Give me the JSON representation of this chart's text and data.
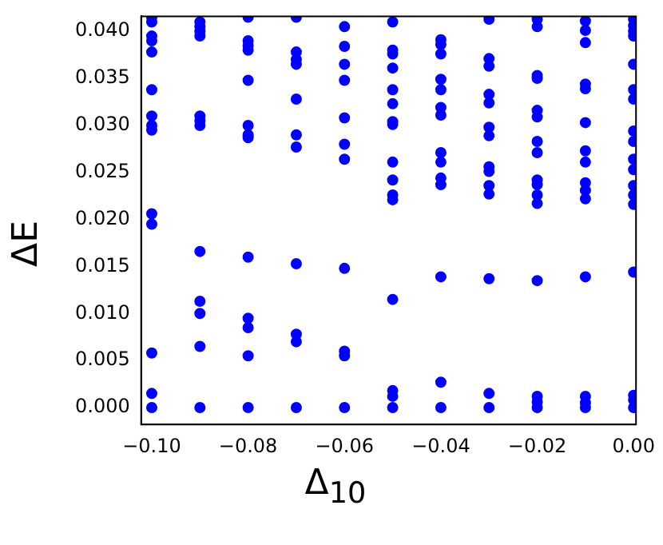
{
  "chart_data": {
    "type": "scatter",
    "xlabel": "Δ$_{10}$",
    "ylabel": "ΔE",
    "color": "#0000ff",
    "marker": "circle",
    "grid": false,
    "legend": false,
    "x": [
      -0.1,
      -0.1,
      -0.1,
      -0.1,
      -0.1,
      -0.1,
      -0.1,
      -0.1,
      -0.1,
      -0.1,
      -0.1,
      -0.1,
      -0.1,
      -0.1,
      -0.09,
      -0.09,
      -0.09,
      -0.09,
      -0.09,
      -0.09,
      -0.09,
      -0.09,
      -0.09,
      -0.09,
      -0.09,
      -0.09,
      -0.08,
      -0.08,
      -0.08,
      -0.08,
      -0.08,
      -0.08,
      -0.08,
      -0.08,
      -0.08,
      -0.08,
      -0.08,
      -0.08,
      -0.08,
      -0.07,
      -0.07,
      -0.07,
      -0.07,
      -0.07,
      -0.07,
      -0.07,
      -0.07,
      -0.07,
      -0.07,
      -0.07,
      -0.06,
      -0.06,
      -0.06,
      -0.06,
      -0.06,
      -0.06,
      -0.06,
      -0.06,
      -0.06,
      -0.06,
      -0.06,
      -0.05,
      -0.05,
      -0.05,
      -0.05,
      -0.05,
      -0.05,
      -0.05,
      -0.05,
      -0.05,
      -0.05,
      -0.05,
      -0.05,
      -0.05,
      -0.05,
      -0.05,
      -0.05,
      -0.04,
      -0.04,
      -0.04,
      -0.04,
      -0.04,
      -0.04,
      -0.04,
      -0.04,
      -0.04,
      -0.04,
      -0.04,
      -0.04,
      -0.04,
      -0.04,
      -0.03,
      -0.03,
      -0.03,
      -0.03,
      -0.03,
      -0.03,
      -0.03,
      -0.03,
      -0.03,
      -0.03,
      -0.03,
      -0.03,
      -0.03,
      -0.03,
      -0.02,
      -0.02,
      -0.02,
      -0.02,
      -0.02,
      -0.02,
      -0.02,
      -0.02,
      -0.02,
      -0.02,
      -0.02,
      -0.02,
      -0.02,
      -0.02,
      -0.02,
      -0.02,
      -0.01,
      -0.01,
      -0.01,
      -0.01,
      -0.01,
      -0.01,
      -0.01,
      -0.01,
      -0.01,
      -0.01,
      -0.01,
      -0.01,
      -0.01,
      -0.01,
      -0.01,
      0,
      0,
      0,
      0,
      0,
      0,
      0,
      0,
      0,
      0,
      0,
      0,
      0,
      0,
      0,
      0,
      0,
      0
    ],
    "values": [
      0.0415,
      0.041,
      0.0395,
      0.039,
      0.0378,
      0.0338,
      0.031,
      0.03,
      0.0295,
      0.0206,
      0.0195,
      0.0058,
      0.0015,
      0,
      0.041,
      0.0405,
      0.04,
      0.0395,
      0.031,
      0.0305,
      0.03,
      0.0166,
      0.0113,
      0.01,
      0.0065,
      0,
      0.0415,
      0.039,
      0.0385,
      0.038,
      0.0348,
      0.03,
      0.029,
      0.0287,
      0.016,
      0.0095,
      0.0085,
      0.0055,
      0,
      0.0415,
      0.0378,
      0.037,
      0.0365,
      0.0328,
      0.029,
      0.0277,
      0.0153,
      0.0078,
      0.007,
      0,
      0.0405,
      0.0384,
      0.0365,
      0.0348,
      0.0308,
      0.028,
      0.0264,
      0.0148,
      0.006,
      0.0055,
      0,
      0.041,
      0.038,
      0.0376,
      0.0361,
      0.0338,
      0.0323,
      0.0304,
      0.0301,
      0.0261,
      0.0242,
      0.0226,
      0.0221,
      0.0115,
      0.0018,
      0.0012,
      0,
      0.0391,
      0.0386,
      0.0376,
      0.0349,
      0.0338,
      0.0319,
      0.0311,
      0.0271,
      0.0261,
      0.0244,
      0.0237,
      0.0139,
      0.0027,
      0,
      0.0413,
      0.0371,
      0.0363,
      0.0333,
      0.0324,
      0.0298,
      0.0289,
      0.0256,
      0.0251,
      0.0236,
      0.0227,
      0.0137,
      0.0015,
      0,
      0.0413,
      0.0405,
      0.0353,
      0.035,
      0.0316,
      0.0309,
      0.0283,
      0.0271,
      0.0242,
      0.0237,
      0.0226,
      0.0217,
      0.0135,
      0.0012,
      0.0006,
      0,
      0.0411,
      0.0401,
      0.0388,
      0.0344,
      0.0339,
      0.0303,
      0.0273,
      0.0261,
      0.0239,
      0.0231,
      0.0222,
      0.0139,
      0.0012,
      0.0005,
      0,
      0.0413,
      0.0406,
      0.04,
      0.0395,
      0.0365,
      0.0338,
      0.0328,
      0.0294,
      0.0283,
      0.0264,
      0.0253,
      0.0236,
      0.0226,
      0.0216,
      0.0144,
      0.0013,
      0.0008,
      0
    ],
    "xlim": [
      -0.1022,
      0.0005
    ],
    "xticks": [
      {
        "value": -0.1,
        "label": "−0.10"
      },
      {
        "value": -0.08,
        "label": "−0.08"
      },
      {
        "value": -0.06,
        "label": "−0.06"
      },
      {
        "value": -0.04,
        "label": "−0.04"
      },
      {
        "value": -0.02,
        "label": "−0.02"
      },
      {
        "value": 0,
        "label": "0.00"
      }
    ],
    "ylim": [
      -0.0018,
      0.0416
    ],
    "yticks": [
      {
        "value": 0,
        "label": "0.000"
      },
      {
        "value": 0.005,
        "label": "0.005"
      },
      {
        "value": 0.01,
        "label": "0.010"
      },
      {
        "value": 0.015,
        "label": "0.015"
      },
      {
        "value": 0.02,
        "label": "0.020"
      },
      {
        "value": 0.025,
        "label": "0.025"
      },
      {
        "value": 0.03,
        "label": "0.030"
      },
      {
        "value": 0.035,
        "label": "0.035"
      },
      {
        "value": 0.04,
        "label": "0.040"
      }
    ]
  }
}
